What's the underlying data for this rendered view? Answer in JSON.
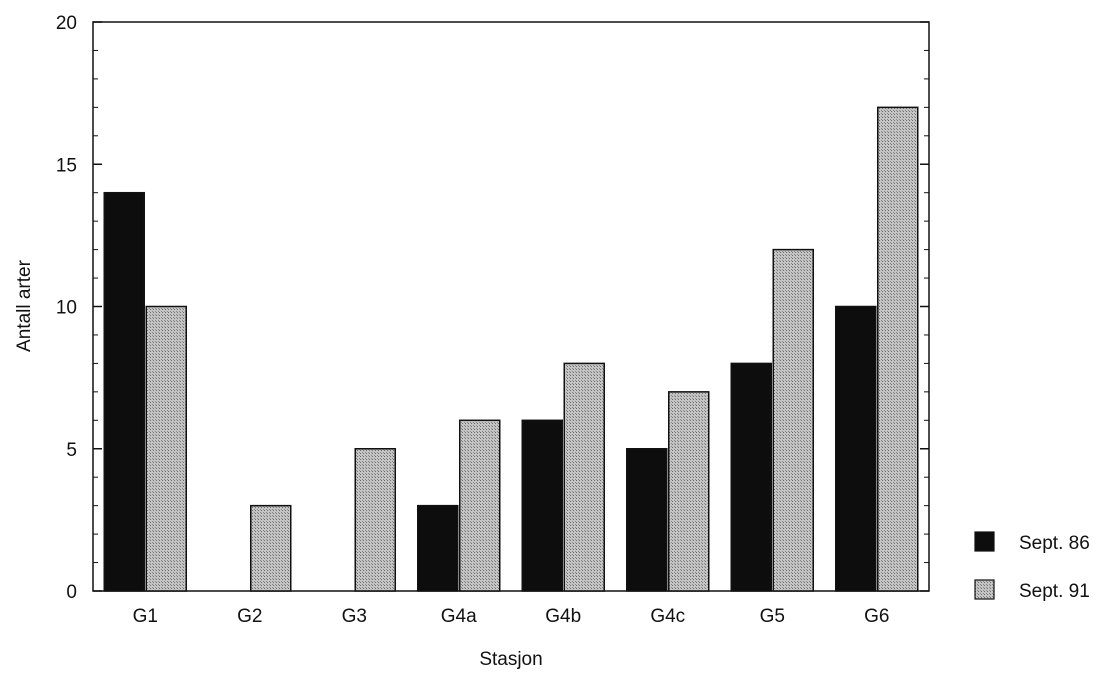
{
  "colors": {
    "sept86": "#0d0d0d",
    "sept91": "#b3b3b3",
    "axis": "#111111"
  },
  "chart_data": {
    "type": "bar",
    "title": "",
    "xlabel": "Stasjon",
    "ylabel": "Antall arter",
    "ylim": [
      0,
      20
    ],
    "yticks": [
      "0",
      "5",
      "10",
      "15",
      "20"
    ],
    "grid": false,
    "legend_position": "bottom-right, outside plot",
    "categories": [
      "G1",
      "G2",
      "G3",
      "G4a",
      "G4b",
      "G4c",
      "G5",
      "G6"
    ],
    "series": [
      {
        "name": "Sept. 86",
        "color": "#0d0d0d",
        "values": [
          14,
          0,
          0,
          3,
          6,
          5,
          8,
          10
        ]
      },
      {
        "name": "Sept. 91",
        "color": "#b3b3b3",
        "values": [
          10,
          3,
          5,
          6,
          8,
          7,
          12,
          17
        ]
      }
    ]
  }
}
